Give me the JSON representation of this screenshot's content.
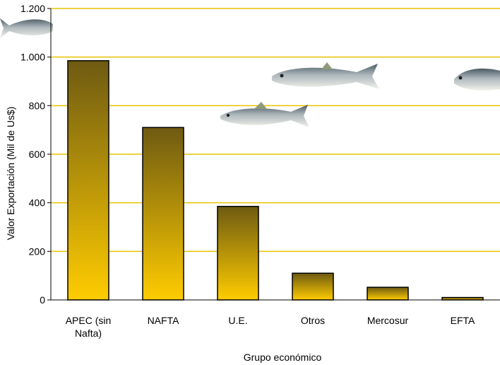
{
  "chart_data": {
    "type": "bar",
    "title": "",
    "xlabel": "Grupo económico",
    "ylabel": "Valor Exportación (Mil de Us$)",
    "categories": [
      [
        "APEC (sin",
        "Nafta)"
      ],
      [
        "NAFTA"
      ],
      [
        "U.E."
      ],
      [
        "Otros"
      ],
      [
        "Mercosur"
      ],
      [
        "EFTA"
      ]
    ],
    "values": [
      985,
      710,
      385,
      110,
      52,
      10
    ],
    "ylim": [
      0,
      1200
    ],
    "yticks": [
      0,
      200,
      400,
      600,
      800,
      1000,
      1200
    ],
    "ytick_labels": [
      "0",
      "200",
      "400",
      "600",
      "800",
      "1.000",
      "1.200"
    ],
    "grid": true,
    "colors": {
      "grid": "#E8C300",
      "bar_top": "#6E5A12",
      "bar_bottom": "#FFCC00",
      "axis": "#000000"
    },
    "decorations": [
      "fish-image",
      "fish-image",
      "fish-image",
      "fish-image"
    ]
  }
}
